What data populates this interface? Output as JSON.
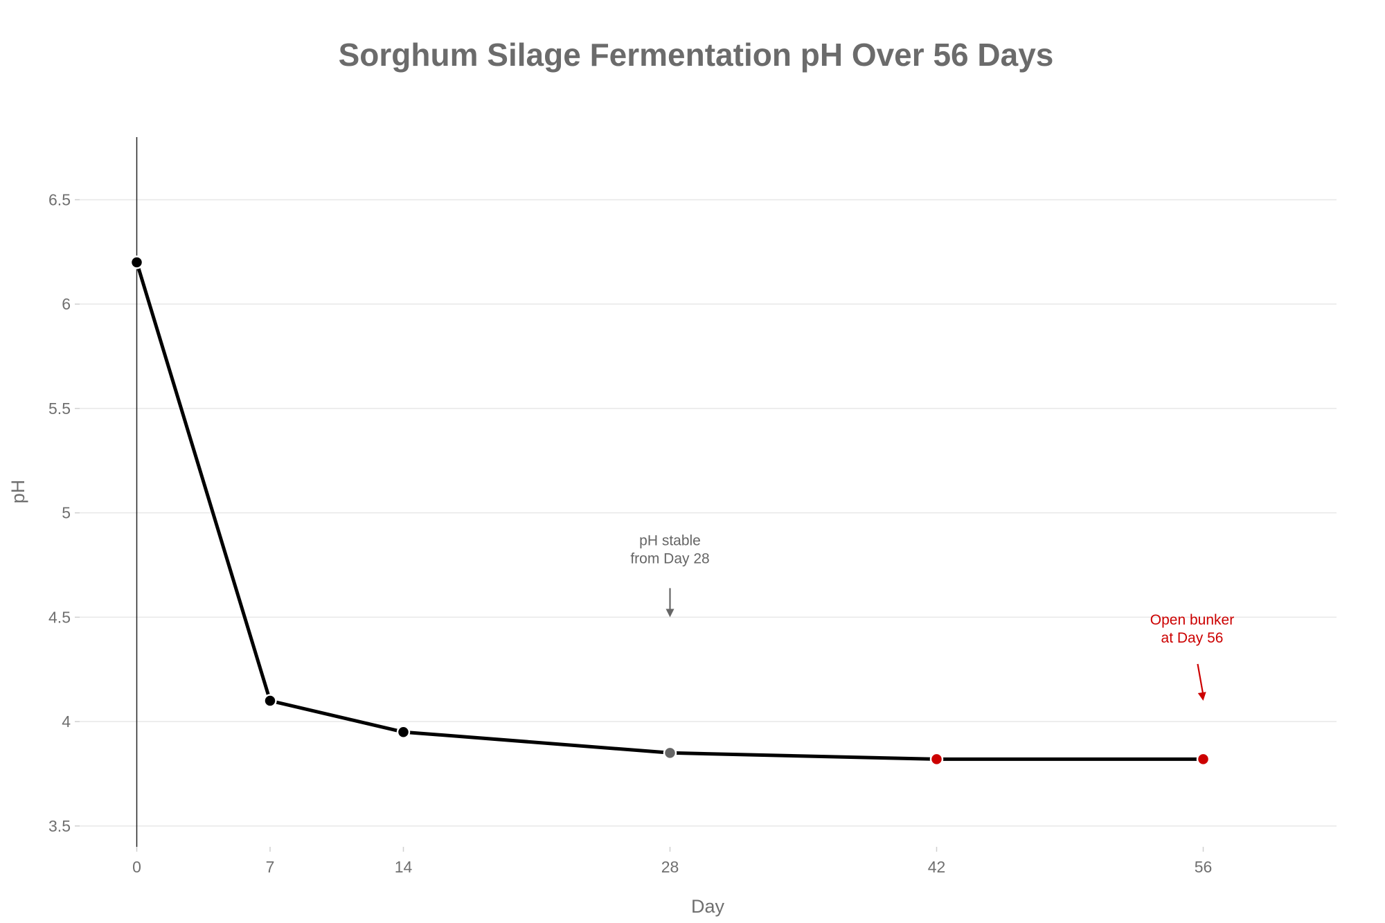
{
  "chart_data": {
    "type": "line",
    "title": "Sorghum Silage Fermentation pH Over 56 Days",
    "xlabel": "Day",
    "ylabel": "pH",
    "x": [
      0,
      7,
      14,
      28,
      42,
      56
    ],
    "x_ticks": [
      "0",
      "7",
      "14",
      "28",
      "42",
      "56"
    ],
    "xlim": [
      -3,
      63
    ],
    "ylim": [
      3.4,
      6.8
    ],
    "y_ticks": [
      3.5,
      4,
      4.5,
      5,
      5.5,
      6,
      6.5
    ],
    "y_tick_labels": [
      "3.5",
      "4",
      "4.5",
      "5",
      "5.5",
      "6",
      "6.5"
    ],
    "grid": "horizontal",
    "series": [
      {
        "values": [
          6.2,
          4.1,
          3.95,
          3.85,
          3.82,
          3.82
        ],
        "line_color": "#000000",
        "marker_colors": [
          "#000000",
          "#000000",
          "#000000",
          "#666666",
          "#cc0000",
          "#cc0000"
        ]
      }
    ],
    "annotations": [
      {
        "lines": [
          "pH stable",
          "from Day 28"
        ],
        "x": 28,
        "y": 4.5,
        "color": "#666666"
      },
      {
        "lines": [
          "Open bunker",
          "at Day 56"
        ],
        "x": 56,
        "y": 4.1,
        "color": "#cc0000"
      }
    ]
  }
}
